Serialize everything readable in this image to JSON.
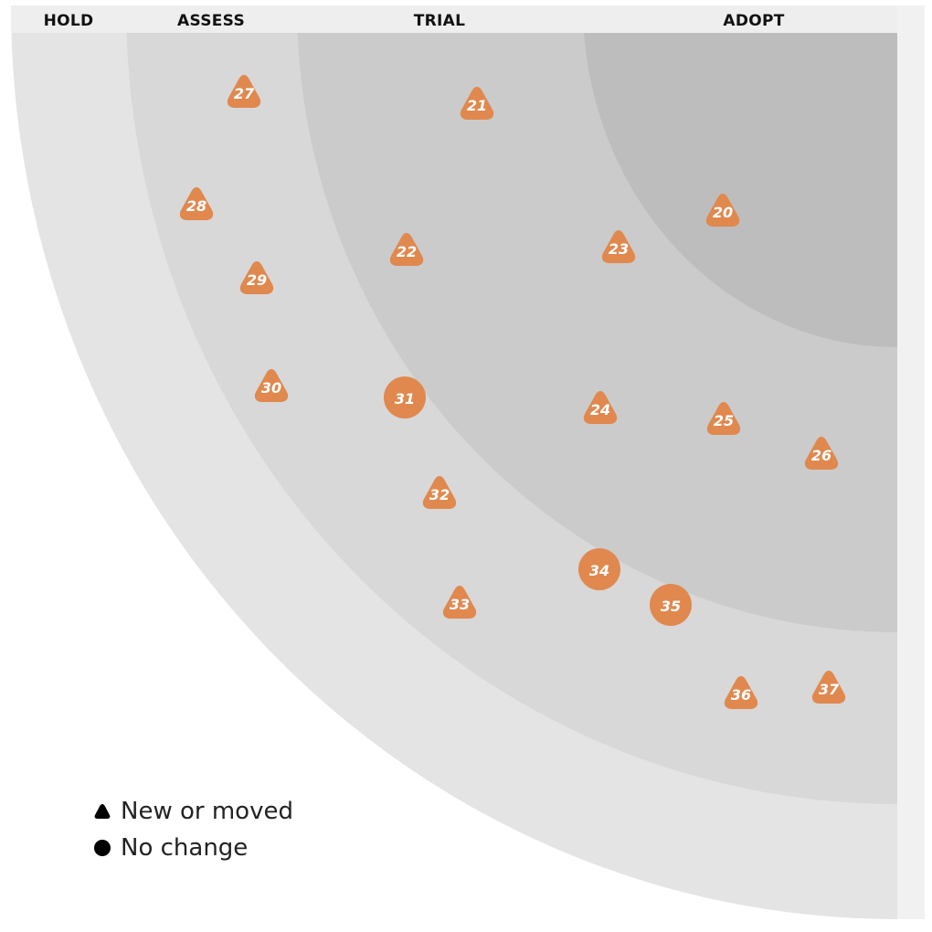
{
  "rings": [
    {
      "id": "hold",
      "label": "HOLD",
      "fill": "#e4e4e4"
    },
    {
      "id": "assess",
      "label": "ASSESS",
      "fill": "#d8d8d8"
    },
    {
      "id": "trial",
      "label": "TRIAL",
      "fill": "#cbcbcb"
    },
    {
      "id": "adopt",
      "label": "ADOPT",
      "fill": "#bdbdbd"
    }
  ],
  "header_fill": "#eeeeee",
  "blip_color": "#e0884e",
  "blips": [
    {
      "num": "20",
      "ring": "adopt",
      "shape": "triangle"
    },
    {
      "num": "21",
      "ring": "trial",
      "shape": "triangle"
    },
    {
      "num": "22",
      "ring": "trial",
      "shape": "triangle"
    },
    {
      "num": "23",
      "ring": "trial",
      "shape": "triangle"
    },
    {
      "num": "24",
      "ring": "trial",
      "shape": "triangle"
    },
    {
      "num": "25",
      "ring": "trial",
      "shape": "triangle"
    },
    {
      "num": "26",
      "ring": "trial",
      "shape": "triangle"
    },
    {
      "num": "27",
      "ring": "assess",
      "shape": "triangle"
    },
    {
      "num": "28",
      "ring": "assess",
      "shape": "triangle"
    },
    {
      "num": "29",
      "ring": "assess",
      "shape": "triangle"
    },
    {
      "num": "30",
      "ring": "assess",
      "shape": "triangle"
    },
    {
      "num": "31",
      "ring": "assess",
      "shape": "circle"
    },
    {
      "num": "32",
      "ring": "assess",
      "shape": "triangle"
    },
    {
      "num": "33",
      "ring": "assess",
      "shape": "triangle"
    },
    {
      "num": "34",
      "ring": "assess",
      "shape": "circle"
    },
    {
      "num": "35",
      "ring": "assess",
      "shape": "circle"
    },
    {
      "num": "36",
      "ring": "assess",
      "shape": "triangle"
    },
    {
      "num": "37",
      "ring": "assess",
      "shape": "triangle"
    }
  ],
  "legend": {
    "new_or_moved": "New or moved",
    "no_change": "No change",
    "icon_color": "#000000"
  }
}
